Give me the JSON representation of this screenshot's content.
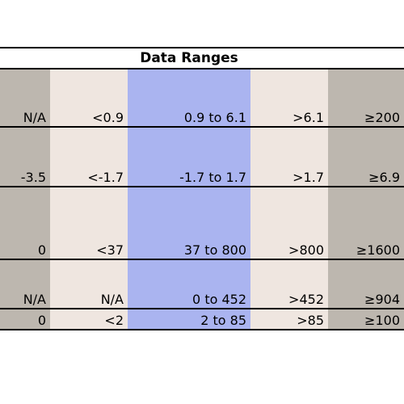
{
  "title": "Data Ranges",
  "colors": {
    "gray": "#bdb7af",
    "beige": "#efe6e0",
    "blue": "#aab4f0"
  },
  "rows": [
    [
      "N/A",
      "<0.9",
      "0.9 to 6.1",
      ">6.1",
      "≥200"
    ],
    [
      "-3.5",
      "<-1.7",
      "-1.7 to 1.7",
      ">1.7",
      "≥6.9"
    ],
    [
      "0",
      "<37",
      "37 to 800",
      ">800",
      "≥1600"
    ],
    [
      "N/A",
      "N/A",
      "0 to 452",
      ">452",
      "≥904"
    ],
    [
      "0",
      "<2",
      "2  to 85",
      ">85",
      "≥100"
    ]
  ]
}
